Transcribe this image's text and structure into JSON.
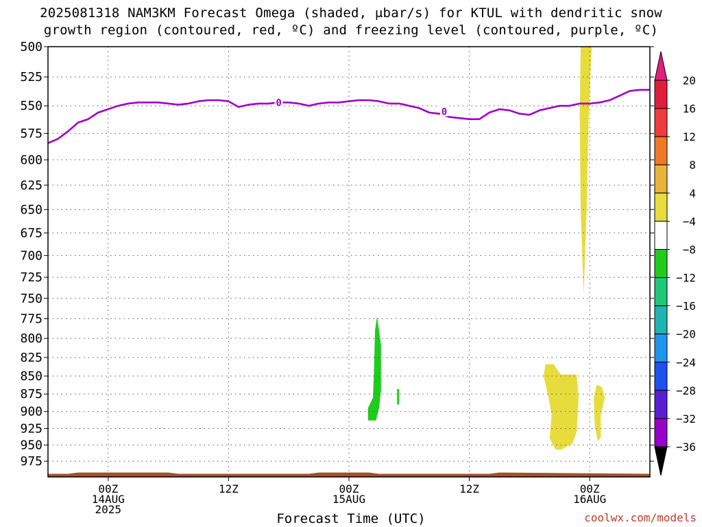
{
  "title_line1": "2025081318 NAM3KM Forecast Omega (shaded, μbar/s) for KTUL with dendritic snow",
  "title_line2": "growth region (contoured, red, ºC) and freezing level (contoured, purple, ºC)",
  "watermark": "coolwx.com/models",
  "colors": {
    "freezing_line": "#a000c8",
    "ground": "#a0522d",
    "positive_4_8": "#e8dc3c",
    "negative_4_8": "#1ecc1e",
    "grid": "#555555"
  },
  "chart_data": {
    "type": "heatmap",
    "xlabel": "Forecast Time (UTC)",
    "ylabel": "",
    "x_units": "hours from 2025-08-13 18Z",
    "xlim": [
      0,
      60
    ],
    "ylim": [
      1000,
      500
    ],
    "y_ticks": [
      500,
      525,
      550,
      575,
      600,
      625,
      650,
      675,
      700,
      725,
      750,
      775,
      800,
      825,
      850,
      875,
      900,
      925,
      950,
      975
    ],
    "x_ticks": [
      {
        "x": 6,
        "lines": [
          "00Z",
          "14AUG",
          "2025"
        ]
      },
      {
        "x": 18,
        "lines": [
          "12Z"
        ]
      },
      {
        "x": 30,
        "lines": [
          "00Z",
          "15AUG"
        ]
      },
      {
        "x": 42,
        "lines": [
          "12Z"
        ]
      },
      {
        "x": 54,
        "lines": [
          "00Z",
          "16AUG"
        ]
      }
    ],
    "colorbar": {
      "levels": [
        20,
        16,
        12,
        8,
        4,
        -4,
        -8,
        -12,
        -16,
        -20,
        -24,
        -28,
        -32,
        -36
      ],
      "colors": [
        "#e01e3c",
        "#f03c3c",
        "#f07828",
        "#e8b43c",
        "#e8dc3c",
        "#ffffff",
        "#1ecc1e",
        "#1ec878",
        "#1eb4b4",
        "#1e96f0",
        "#1e50f0",
        "#5a1ed2",
        "#9600c8",
        "#a0a0a0"
      ],
      "top_arrow": "#e0207a",
      "bottom_arrow": "#000000"
    },
    "freezing_level": {
      "label": "0",
      "label_positions": [
        [
          23,
          547
        ],
        [
          39.5,
          555
        ]
      ],
      "x": [
        0,
        1,
        2,
        3,
        4,
        5,
        6,
        7,
        8,
        9,
        10,
        11,
        12,
        13,
        14,
        15,
        16,
        17,
        18,
        19,
        20,
        21,
        22,
        23,
        24,
        25,
        26,
        27,
        28,
        29,
        30,
        31,
        32,
        33,
        34,
        35,
        36,
        37,
        38,
        39,
        40,
        41,
        42,
        43,
        44,
        45,
        46,
        47,
        48,
        49,
        50,
        51,
        52,
        53,
        54,
        55,
        56,
        57,
        58,
        59,
        60
      ],
      "y": [
        584,
        580,
        573,
        565,
        562,
        556,
        553,
        550,
        548,
        547,
        547,
        547,
        548,
        549,
        548,
        546,
        545,
        545,
        546,
        551,
        549,
        548,
        548,
        547,
        547,
        548,
        550,
        548,
        547,
        547,
        546,
        545,
        545,
        546,
        548,
        548,
        550,
        552,
        556,
        557,
        560,
        561,
        562,
        562,
        556,
        553,
        554,
        557,
        558,
        554,
        552,
        550,
        550,
        548,
        548,
        547,
        545,
        541,
        537,
        536,
        536
      ]
    },
    "shaded_regions": [
      {
        "value_bin": "4 to 8",
        "points": [
          [
            53.1,
            500
          ],
          [
            54.2,
            500
          ],
          [
            53.9,
            560
          ],
          [
            53.7,
            650
          ],
          [
            53.4,
            745
          ],
          [
            53.1,
            650
          ],
          [
            53.0,
            560
          ]
        ]
      },
      {
        "value_bin": "4 to 8",
        "points": [
          [
            49.6,
            834
          ],
          [
            50.4,
            834
          ],
          [
            51.1,
            848
          ],
          [
            52.7,
            848
          ],
          [
            52.9,
            880
          ],
          [
            52.7,
            930
          ],
          [
            52.3,
            947
          ],
          [
            51.2,
            957
          ],
          [
            50.6,
            957
          ],
          [
            50.0,
            940
          ],
          [
            50.2,
            905
          ],
          [
            49.9,
            880
          ],
          [
            49.4,
            850
          ]
        ]
      },
      {
        "value_bin": "4 to 8",
        "points": [
          [
            54.7,
            862
          ],
          [
            55.2,
            865
          ],
          [
            55.5,
            880
          ],
          [
            55.1,
            905
          ],
          [
            55.1,
            938
          ],
          [
            54.8,
            945
          ],
          [
            54.5,
            920
          ],
          [
            54.4,
            880
          ]
        ]
      },
      {
        "value_bin": "-4 to -8",
        "points": [
          [
            32.8,
            772
          ],
          [
            33.2,
            808
          ],
          [
            33.2,
            870
          ],
          [
            33.0,
            895
          ],
          [
            32.7,
            913
          ],
          [
            31.9,
            913
          ],
          [
            31.9,
            895
          ],
          [
            32.4,
            880
          ],
          [
            32.5,
            840
          ],
          [
            32.6,
            790
          ]
        ]
      },
      {
        "value_bin": "-4 to -8",
        "points": [
          [
            34.8,
            868
          ],
          [
            35.0,
            868
          ],
          [
            35.0,
            890
          ],
          [
            34.8,
            890
          ]
        ]
      }
    ],
    "surface": {
      "x": [
        0,
        2,
        3,
        12,
        13,
        26,
        27,
        32,
        33,
        44,
        45,
        60
      ],
      "p": [
        995,
        995,
        993,
        993,
        995,
        995,
        993,
        993,
        995,
        995,
        993,
        995
      ]
    }
  }
}
